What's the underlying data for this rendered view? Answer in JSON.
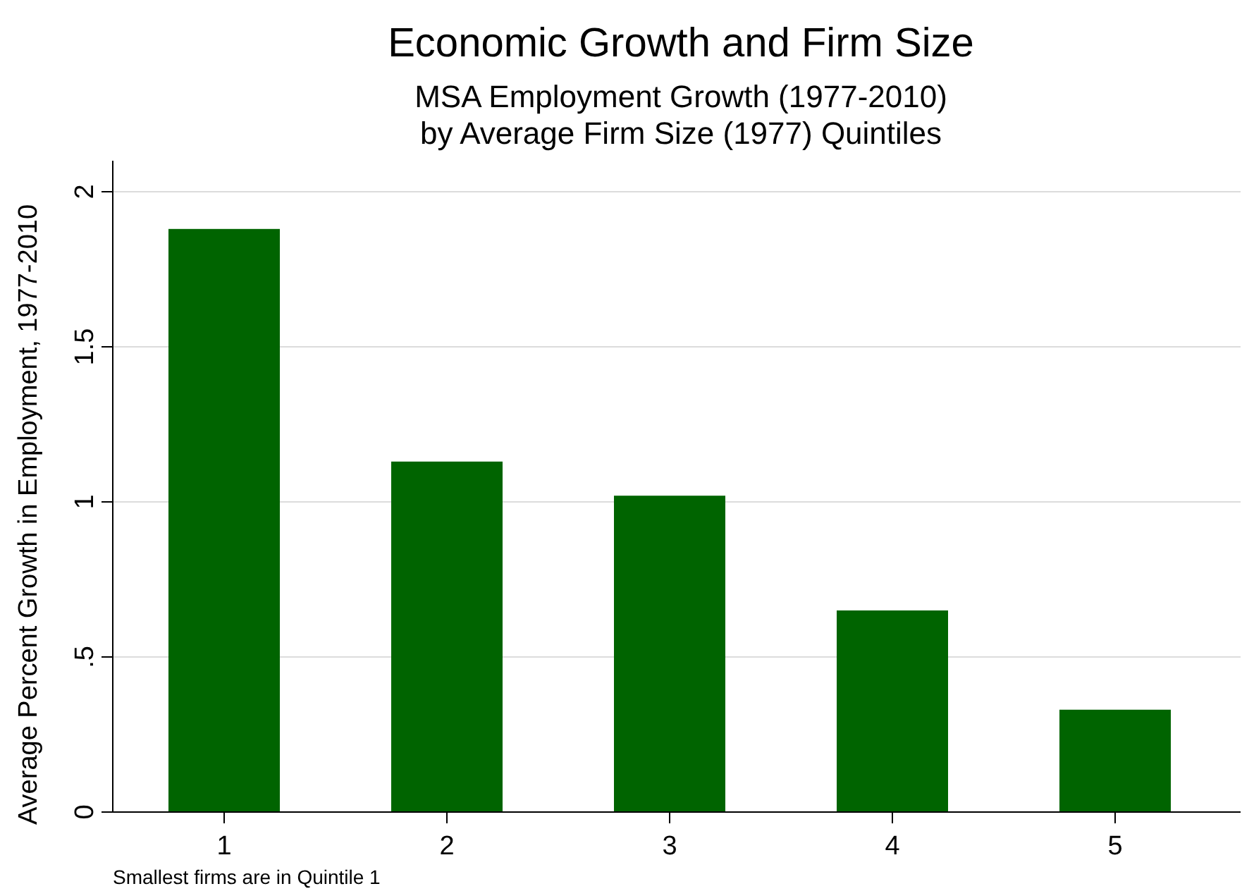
{
  "chart_data": {
    "type": "bar",
    "title": "Economic Growth and Firm Size",
    "subtitle": "MSA Employment Growth (1977-2010)\nby Average Firm Size (1977) Quintiles",
    "ylabel": "Average Percent Growth in Employment, 1977-2010",
    "annotations": [
      "Smallest firms are in Quintile 1"
    ],
    "categories": [
      "1",
      "2",
      "3",
      "4",
      "5"
    ],
    "values": [
      1.88,
      1.13,
      1.02,
      0.65,
      0.33
    ],
    "color": "#006400",
    "ylim": [
      0,
      2.1
    ],
    "yticks": [
      0,
      {
        "value": 0.5,
        "label": ".5"
      },
      1,
      1.5,
      2
    ],
    "grid": "y"
  }
}
